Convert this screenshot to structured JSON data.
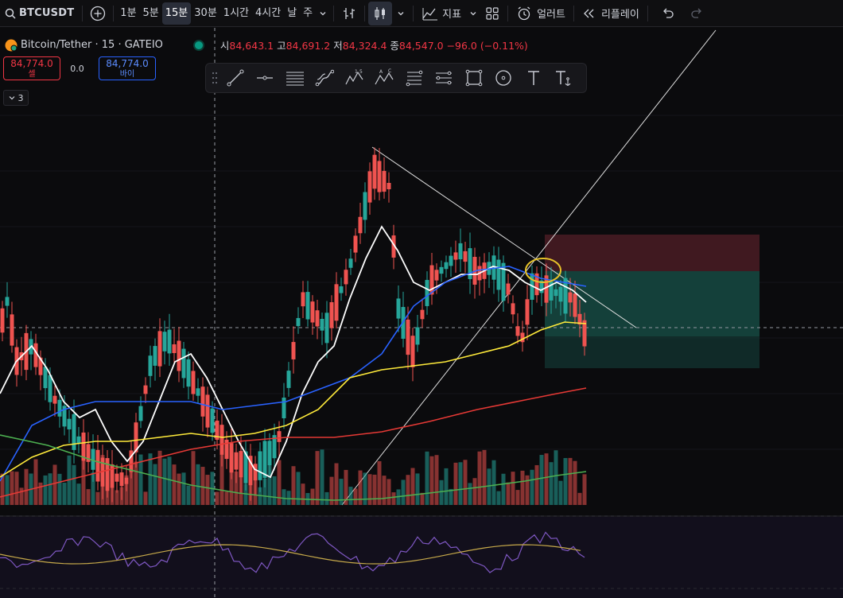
{
  "toolbar": {
    "symbol": "BTCUSDT",
    "timeframes": [
      "1분",
      "5분",
      "15분",
      "30분",
      "1시간",
      "4시간",
      "날",
      "주"
    ],
    "active_timeframe": "15분",
    "indicators_label": "지표",
    "alerts_label": "얼러트",
    "replay_label": "리플레이"
  },
  "legend": {
    "title": "Bitcoin/Tether · 15 · GATEIO",
    "open_label": "시",
    "open": "84,643.1",
    "high_label": "고",
    "high": "84,691.2",
    "low_label": "저",
    "low": "84,324.4",
    "close_label": "종",
    "close": "84,547.0",
    "change": "−96.0 (−0.11%)"
  },
  "trade": {
    "sell_price": "84,774.0",
    "sell_label": "셀",
    "spread": "0.0",
    "buy_price": "84,774.0",
    "buy_label": "바이"
  },
  "collapse_count": "3",
  "drawing_tools": [
    "drag-handle-icon",
    "trend-line-icon",
    "horizontal-ray-icon",
    "parallel-channel-icon",
    "curve-icon",
    "elliott-wave-icon",
    "abcd-pattern-icon",
    "fib-retracement-icon",
    "pitchfork-icon",
    "rectangle-icon",
    "circle-icon",
    "text-icon",
    "anchored-text-icon"
  ],
  "colors": {
    "up": "#26a69a",
    "down": "#ef5350",
    "ma_white": "#ffffff",
    "ma_blue": "#2962ff",
    "ma_yellow": "#ffeb3b",
    "ma_red": "#e53935",
    "ma_green": "#4caf50",
    "rsi": "#7e57c2"
  }
}
